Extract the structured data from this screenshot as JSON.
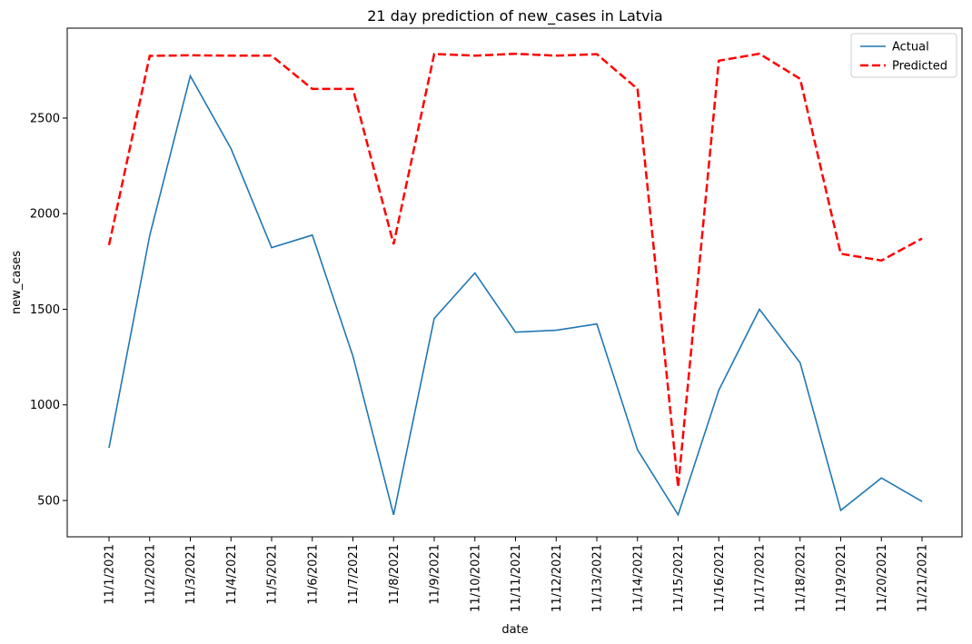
{
  "chart_data": {
    "type": "line",
    "title": "21 day prediction of new_cases in Latvia",
    "xlabel": "date",
    "ylabel": "new_cases",
    "categories": [
      "11/1/2021",
      "11/2/2021",
      "11/3/2021",
      "11/4/2021",
      "11/5/2021",
      "11/6/2021",
      "11/7/2021",
      "11/8/2021",
      "11/9/2021",
      "11/10/2021",
      "11/11/2021",
      "11/12/2021",
      "11/13/2021",
      "11/14/2021",
      "11/15/2021",
      "11/16/2021",
      "11/17/2021",
      "11/18/2021",
      "11/19/2021",
      "11/20/2021",
      "11/21/2021"
    ],
    "yticks": [
      500,
      1000,
      1500,
      2000,
      2500
    ],
    "ylim": [
      310,
      2970
    ],
    "grid": false,
    "legend_position": "top-right",
    "series": [
      {
        "name": "Actual",
        "color": "#1f77b4",
        "style": "solid",
        "values": [
          775,
          1885,
          2720,
          2340,
          1822,
          1888,
          1255,
          425,
          1452,
          1690,
          1380,
          1390,
          1423,
          765,
          425,
          1077,
          1500,
          1220,
          448,
          618,
          495
        ]
      },
      {
        "name": "Predicted",
        "color": "#ff0000",
        "style": "dashed",
        "values": [
          1835,
          2825,
          2828,
          2826,
          2826,
          2652,
          2652,
          1840,
          2835,
          2826,
          2836,
          2826,
          2834,
          2652,
          570,
          2800,
          2836,
          2705,
          1790,
          1755,
          1870
        ]
      }
    ]
  }
}
